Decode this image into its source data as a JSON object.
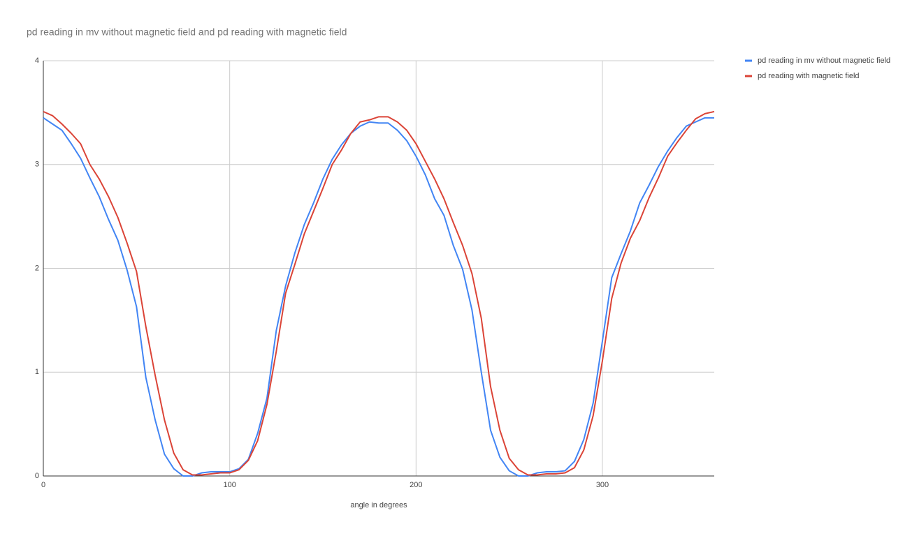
{
  "chart_data": {
    "type": "line",
    "title": "pd reading in mv without magnetic field  and pd reading with magnetic field",
    "x_label": "angle in degrees",
    "x": [
      0,
      5,
      10,
      15,
      20,
      25,
      30,
      35,
      40,
      45,
      50,
      55,
      60,
      65,
      70,
      75,
      80,
      85,
      90,
      95,
      100,
      105,
      110,
      115,
      120,
      125,
      130,
      135,
      140,
      145,
      150,
      155,
      160,
      165,
      170,
      175,
      180,
      185,
      190,
      195,
      200,
      205,
      210,
      215,
      220,
      225,
      230,
      235,
      240,
      245,
      250,
      255,
      260,
      265,
      270,
      275,
      280,
      285,
      290,
      295,
      300,
      305,
      310,
      315,
      320,
      325,
      330,
      335,
      340,
      345,
      350,
      355,
      360
    ],
    "series": [
      {
        "name": "pd reading in mv without magnetic field",
        "color": "#4285f4",
        "values": [
          3.45,
          3.39,
          3.33,
          3.2,
          3.06,
          2.87,
          2.69,
          2.47,
          2.27,
          1.98,
          1.63,
          0.95,
          0.54,
          0.21,
          0.07,
          0.0,
          0.0,
          0.03,
          0.04,
          0.04,
          0.04,
          0.07,
          0.16,
          0.41,
          0.75,
          1.4,
          1.83,
          2.15,
          2.42,
          2.63,
          2.86,
          3.05,
          3.19,
          3.3,
          3.37,
          3.41,
          3.4,
          3.4,
          3.33,
          3.23,
          3.08,
          2.9,
          2.67,
          2.51,
          2.22,
          1.99,
          1.6,
          1.0,
          0.44,
          0.18,
          0.05,
          0.0,
          0.0,
          0.03,
          0.04,
          0.04,
          0.05,
          0.14,
          0.35,
          0.7,
          1.3,
          1.91,
          2.14,
          2.36,
          2.63,
          2.8,
          2.98,
          3.13,
          3.26,
          3.37,
          3.41,
          3.45,
          3.45
        ]
      },
      {
        "name": "pd reading with magnetic field",
        "color": "#db4437",
        "values": [
          3.51,
          3.47,
          3.39,
          3.3,
          3.2,
          3.0,
          2.86,
          2.69,
          2.49,
          2.24,
          1.97,
          1.44,
          0.97,
          0.54,
          0.22,
          0.06,
          0.01,
          0.01,
          0.02,
          0.03,
          0.03,
          0.06,
          0.15,
          0.34,
          0.69,
          1.2,
          1.76,
          2.04,
          2.33,
          2.55,
          2.77,
          3.0,
          3.14,
          3.3,
          3.41,
          3.43,
          3.46,
          3.46,
          3.41,
          3.33,
          3.2,
          3.03,
          2.86,
          2.67,
          2.44,
          2.22,
          1.95,
          1.52,
          0.86,
          0.44,
          0.17,
          0.06,
          0.01,
          0.01,
          0.02,
          0.02,
          0.03,
          0.08,
          0.25,
          0.58,
          1.11,
          1.71,
          2.05,
          2.29,
          2.46,
          2.68,
          2.87,
          3.08,
          3.21,
          3.33,
          3.44,
          3.49,
          3.51
        ]
      }
    ],
    "xlim": [
      0,
      360
    ],
    "xticks": [
      0,
      100,
      200,
      300
    ],
    "ylim": [
      0,
      4
    ],
    "yticks": [
      0,
      1,
      2,
      3,
      4
    ],
    "grid": true,
    "legend": "right"
  }
}
